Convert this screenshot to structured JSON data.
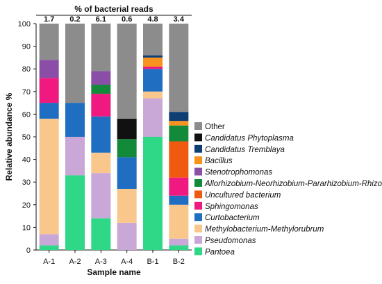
{
  "chart_data": {
    "type": "bar",
    "stacked": true,
    "top_axis_title": "% of bacterial reads",
    "top_values": [
      "1.7",
      "0.2",
      "6.1",
      "0.6",
      "4.8",
      "3.4"
    ],
    "xlabel": "Sample name",
    "ylabel": "Relative abundance %",
    "ylim": [
      0,
      100
    ],
    "yticks": [
      "0",
      "10",
      "20",
      "30",
      "40",
      "50",
      "60",
      "70",
      "80",
      "90",
      "100"
    ],
    "categories": [
      "A-1",
      "A-2",
      "A-3",
      "A-4",
      "B-1",
      "B-2"
    ],
    "grid": false,
    "legend_position": "right",
    "series": [
      {
        "name": "Pantoea",
        "italic": true,
        "color": "#2ed887",
        "values": [
          2,
          33,
          14,
          0,
          50,
          2
        ]
      },
      {
        "name": "Pseudomonas",
        "italic": true,
        "color": "#c9a8d8",
        "values": [
          5,
          17,
          20,
          12,
          17,
          3
        ]
      },
      {
        "name": "Methylobacterium-Methylorubrum",
        "italic": true,
        "color": "#f9c78c",
        "values": [
          51,
          0,
          9,
          15,
          3,
          15
        ]
      },
      {
        "name": "Curtobacterium",
        "italic": true,
        "color": "#1f6ec2",
        "values": [
          7,
          15,
          16,
          14,
          10,
          4
        ]
      },
      {
        "name": "Sphingomonas",
        "italic": true,
        "color": "#f0197f",
        "values": [
          11,
          0,
          10,
          0,
          1,
          8
        ]
      },
      {
        "name": "Uncultured bacterium",
        "italic": true,
        "color": "#f05a10",
        "values": [
          0,
          0,
          0,
          0,
          0,
          16
        ]
      },
      {
        "name": "Allorhizobium-Neorhizobium-Pararhizobium-Rhizobium",
        "italic": true,
        "color": "#138a3a",
        "values": [
          0,
          0,
          4,
          8,
          0,
          7
        ]
      },
      {
        "name": "Stenotrophomonas",
        "italic": true,
        "color": "#8a4ea6",
        "values": [
          8,
          0,
          6,
          0,
          0,
          0
        ]
      },
      {
        "name": "Bacillus",
        "italic": true,
        "color": "#f7921e",
        "values": [
          0,
          0,
          0,
          0,
          4,
          2
        ]
      },
      {
        "name": "Candidatus Tremblaya",
        "italic": true,
        "color": "#0e3f73",
        "values": [
          0,
          0,
          0,
          0,
          1,
          4
        ]
      },
      {
        "name": "Candidatus Phytoplasma",
        "italic": true,
        "color": "#111111",
        "values": [
          0,
          0,
          0,
          9,
          0,
          0
        ]
      },
      {
        "name": "Other",
        "italic": false,
        "color": "#8c8c8c",
        "values": [
          16,
          35,
          21,
          42,
          14,
          39
        ]
      }
    ]
  }
}
